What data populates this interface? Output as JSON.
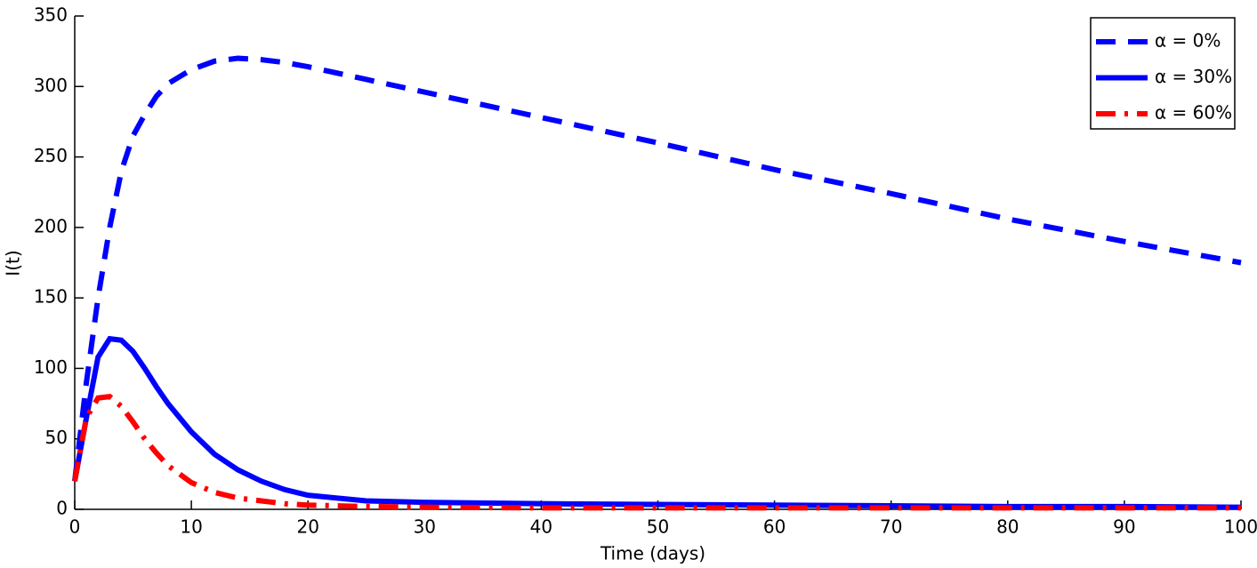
{
  "chart_data": {
    "type": "line",
    "x_label": "Time (days)",
    "y_label": "I(t)",
    "x": [
      0,
      1,
      2,
      3,
      4,
      5,
      6,
      7,
      8,
      10,
      12,
      14,
      16,
      18,
      20,
      25,
      30,
      40,
      50,
      60,
      70,
      80,
      90,
      100
    ],
    "series": [
      {
        "name": "α = 0%",
        "color": "#0000ff",
        "dash": "dashed",
        "values": [
          20,
          90,
          150,
          200,
          240,
          265,
          280,
          293,
          302,
          312,
          318,
          320,
          319,
          317,
          314,
          305,
          296,
          278,
          260,
          241,
          224,
          206,
          190,
          175
        ]
      },
      {
        "name": "α = 30%",
        "color": "#0000ff",
        "dash": "solid",
        "values": [
          20,
          65,
          108,
          121,
          120,
          112,
          100,
          87,
          75,
          55,
          39,
          28,
          20,
          14,
          10,
          6,
          5,
          4,
          3.5,
          3,
          2.5,
          2,
          2,
          1.5
        ]
      },
      {
        "name": "α = 60%",
        "color": "#ff0000",
        "dash": "dashdot",
        "values": [
          20,
          65,
          79,
          80,
          73,
          62,
          50,
          40,
          31,
          19,
          12,
          8,
          6,
          4,
          3,
          2,
          1.5,
          1,
          1,
          1,
          1,
          1,
          1,
          1
        ]
      }
    ],
    "xlim": [
      0,
      100
    ],
    "xticks": [
      0,
      10,
      20,
      30,
      40,
      50,
      60,
      70,
      80,
      90,
      100
    ],
    "ylim": [
      0,
      350
    ],
    "yticks": [
      0,
      50,
      100,
      150,
      200,
      250,
      300,
      350
    ],
    "legend": "top-right"
  }
}
